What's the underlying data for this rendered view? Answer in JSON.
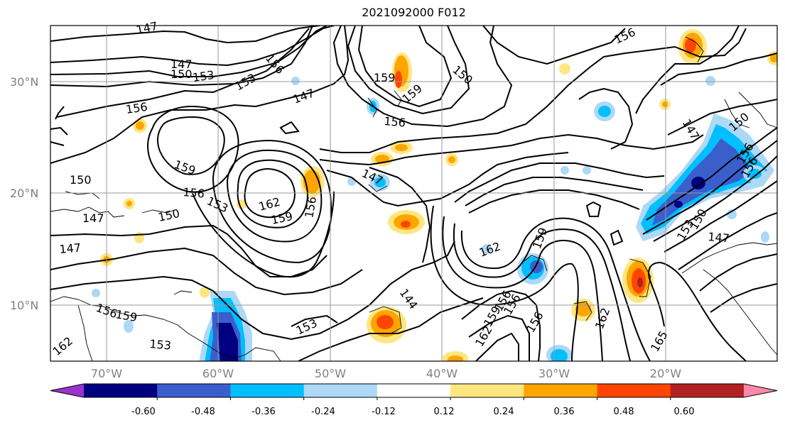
{
  "title": "2021092000 F012",
  "map": {
    "lat_labels": [
      "30°N",
      "20°N",
      "10°N"
    ],
    "lon_labels": [
      "70°W",
      "60°W",
      "50°W",
      "40°W",
      "30°W",
      "20°W"
    ],
    "contour_labels": [
      "147",
      "147",
      "150",
      "153",
      "156",
      "153",
      "147",
      "159",
      "156",
      "156",
      "159",
      "147",
      "150",
      "156",
      "150",
      "147",
      "159",
      "156",
      "153",
      "162",
      "159",
      "156",
      "147",
      "150",
      "147",
      "156",
      "159",
      "162",
      "159",
      "156",
      "156",
      "144",
      "153",
      "162",
      "156",
      "159",
      "162",
      "165",
      "153",
      "150",
      "147",
      "150",
      "156",
      "156",
      "153",
      "162"
    ]
  },
  "colorbar": {
    "tick_labels": [
      "-0.60",
      "-0.48",
      "-0.36",
      "-0.24",
      "-0.12",
      "0.12",
      "0.24",
      "0.36",
      "0.48",
      "0.60"
    ],
    "colors": [
      "#9933cc",
      "#000080",
      "#3a5fcd",
      "#00bfff",
      "#add8f6",
      "#ffffff",
      "#ffe680",
      "#ffa500",
      "#ff4500",
      "#b22222",
      "#ff88aa"
    ]
  }
}
